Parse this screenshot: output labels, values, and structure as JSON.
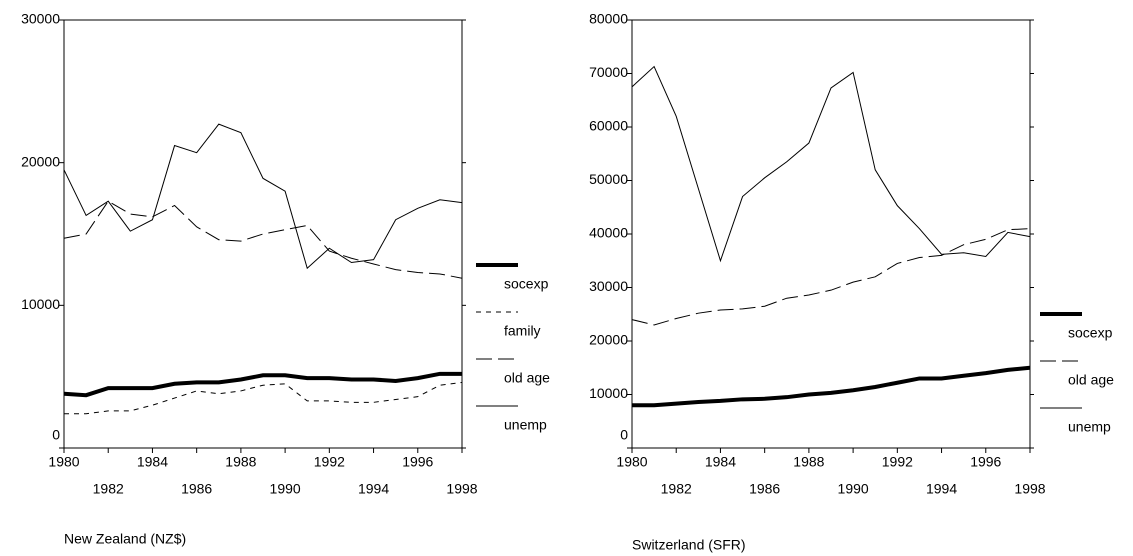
{
  "chart_data": [
    {
      "type": "line",
      "title": "New Zealand (NZ$)",
      "x": [
        1980,
        1981,
        1982,
        1983,
        1984,
        1985,
        1986,
        1987,
        1988,
        1989,
        1990,
        1991,
        1992,
        1993,
        1994,
        1995,
        1996,
        1997,
        1998
      ],
      "xlim": [
        1980,
        1998
      ],
      "xticks": [
        1980,
        1982,
        1984,
        1986,
        1988,
        1990,
        1992,
        1994,
        1996,
        1998
      ],
      "ylim": [
        0,
        30000
      ],
      "yticks": [
        0,
        10000,
        20000,
        30000
      ],
      "series": [
        {
          "name": "socexp",
          "color": "#000000",
          "style": "thick",
          "values": [
            3800,
            3700,
            4200,
            4200,
            4200,
            4500,
            4600,
            4600,
            4800,
            5100,
            5100,
            4900,
            4900,
            4800,
            4800,
            4700,
            4900,
            5200,
            5200
          ]
        },
        {
          "name": "family",
          "color": "#000000",
          "style": "dashed",
          "values": [
            2400,
            2400,
            2600,
            2600,
            3000,
            3500,
            4000,
            3800,
            4000,
            4400,
            4500,
            3300,
            3300,
            3200,
            3200,
            3400,
            3600,
            4400,
            4600
          ]
        },
        {
          "name": "old age",
          "color": "#000000",
          "style": "dashdot",
          "values": [
            14700,
            15000,
            17300,
            16400,
            16200,
            17000,
            15500,
            14600,
            14500,
            15000,
            15300,
            15600,
            13800,
            13300,
            12900,
            12500,
            12300,
            12200,
            11900
          ]
        },
        {
          "name": "unemp",
          "color": "#000000",
          "style": "solid",
          "values": [
            19500,
            16300,
            17300,
            15200,
            16000,
            21200,
            20700,
            22700,
            22100,
            18900,
            18000,
            12600,
            14000,
            13000,
            13200,
            16000,
            16800,
            17400,
            17200
          ]
        }
      ]
    },
    {
      "type": "line",
      "title": "Switzerland (SFR)",
      "x": [
        1980,
        1981,
        1982,
        1983,
        1984,
        1985,
        1986,
        1987,
        1988,
        1989,
        1990,
        1991,
        1992,
        1993,
        1994,
        1995,
        1996,
        1997,
        1998
      ],
      "xlim": [
        1980,
        1998
      ],
      "xticks": [
        1980,
        1982,
        1984,
        1986,
        1988,
        1990,
        1992,
        1994,
        1996,
        1998
      ],
      "ylim": [
        0,
        80000
      ],
      "yticks": [
        0,
        10000,
        20000,
        30000,
        40000,
        50000,
        60000,
        70000,
        80000
      ],
      "series": [
        {
          "name": "socexp",
          "color": "#000000",
          "style": "thick",
          "values": [
            8000,
            8000,
            8300,
            8600,
            8800,
            9100,
            9200,
            9500,
            10000,
            10300,
            10800,
            11400,
            12200,
            13000,
            13000,
            13500,
            14000,
            14600,
            15000
          ]
        },
        {
          "name": "old age",
          "color": "#000000",
          "style": "dashdot",
          "values": [
            24000,
            23000,
            24200,
            25200,
            25800,
            26000,
            26500,
            28000,
            28600,
            29500,
            31000,
            32000,
            34500,
            35600,
            36000,
            38000,
            39000,
            40800,
            41000
          ]
        },
        {
          "name": "unemp",
          "color": "#000000",
          "style": "solid",
          "values": [
            67500,
            71300,
            62000,
            48500,
            35000,
            47000,
            50500,
            53500,
            57000,
            67300,
            70200,
            52000,
            45300,
            41000,
            36200,
            36500,
            35800,
            40300,
            39500
          ]
        }
      ]
    }
  ]
}
